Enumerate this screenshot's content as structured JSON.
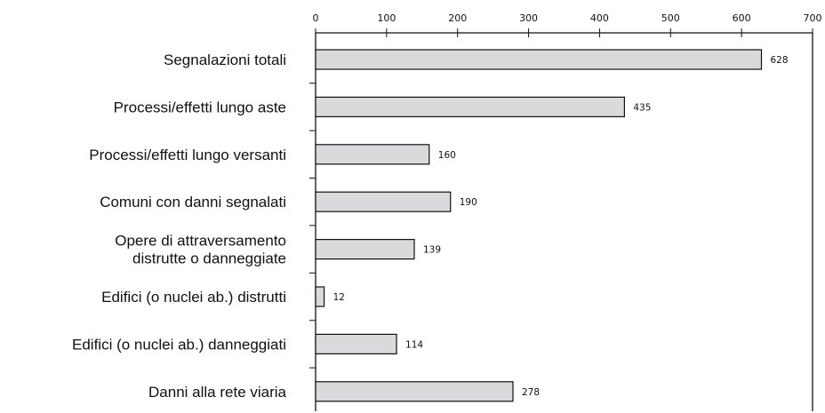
{
  "chart_data": {
    "type": "bar",
    "orientation": "horizontal",
    "categories": [
      [
        "Segnalazioni totali"
      ],
      [
        "Processi/effetti lungo aste"
      ],
      [
        "Processi/effetti lungo versanti"
      ],
      [
        "Comuni con danni segnalati"
      ],
      [
        "Opere di attraversamento",
        "distrutte o danneggiate"
      ],
      [
        "Edifici (o nuclei ab.) distrutti"
      ],
      [
        "Edifici (o nuclei ab.) danneggiati"
      ],
      [
        "Danni alla rete viaria"
      ]
    ],
    "values": [
      628,
      435,
      160,
      190,
      139,
      12,
      114,
      278
    ],
    "data_labels": [
      "628",
      "435",
      "160",
      "190",
      "139",
      "12",
      "114",
      "278"
    ],
    "xlim": [
      0,
      700
    ],
    "xticks": [
      0,
      100,
      200,
      300,
      400,
      500,
      600,
      700
    ],
    "xtick_labels": [
      "0",
      "100",
      "200",
      "300",
      "400",
      "500",
      "600",
      "700"
    ],
    "axis_position": "top",
    "grid": false,
    "title": "",
    "xlabel": "",
    "ylabel": "",
    "bar_color": "#d9dadb",
    "edge_color": "#111111"
  }
}
